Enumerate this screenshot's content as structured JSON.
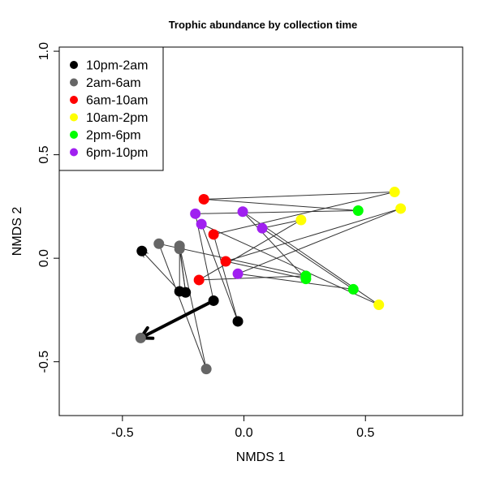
{
  "chart_data": {
    "type": "scatter",
    "title": "Trophic abundance by collection time",
    "xlabel": "NMDS 1",
    "ylabel": "NMDS 2",
    "xlim": [
      -0.76,
      0.9
    ],
    "ylim": [
      -0.76,
      1.02
    ],
    "xticks": [
      -0.5,
      0.0,
      0.5
    ],
    "xtick_labels": [
      "-0.5",
      "0.0",
      "0.5"
    ],
    "yticks": [
      -0.5,
      0.0,
      0.5,
      1.0
    ],
    "ytick_labels": [
      "-0.5",
      "0.0",
      "0.5",
      "1.0"
    ],
    "grid": false,
    "legend_position": "top-left",
    "series": [
      {
        "name": "10pm-2am",
        "color": "#000000",
        "points": [
          {
            "id": 1,
            "x": -0.42,
            "y": 0.035
          },
          {
            "id": 2,
            "x": -0.265,
            "y": -0.16
          },
          {
            "id": 3,
            "x": -0.24,
            "y": -0.165
          },
          {
            "id": 4,
            "x": -0.125,
            "y": -0.205
          },
          {
            "id": 5,
            "x": -0.025,
            "y": -0.305
          }
        ]
      },
      {
        "name": "2am-6am",
        "color": "#666666",
        "points": [
          {
            "id": 6,
            "x": -0.35,
            "y": 0.07
          },
          {
            "id": 7,
            "x": -0.265,
            "y": 0.06
          },
          {
            "id": 8,
            "x": -0.265,
            "y": 0.045
          },
          {
            "id": 9,
            "x": -0.425,
            "y": -0.385
          },
          {
            "id": 10,
            "x": -0.155,
            "y": -0.535
          }
        ]
      },
      {
        "name": "6am-10am",
        "color": "#ff0000",
        "points": [
          {
            "id": 11,
            "x": -0.165,
            "y": 0.285
          },
          {
            "id": 12,
            "x": -0.125,
            "y": 0.115
          },
          {
            "id": 13,
            "x": -0.075,
            "y": -0.015
          },
          {
            "id": 14,
            "x": -0.185,
            "y": -0.105
          }
        ]
      },
      {
        "name": "10am-2pm",
        "color": "#ffff00",
        "points": [
          {
            "id": 15,
            "x": 0.62,
            "y": 0.32
          },
          {
            "id": 16,
            "x": 0.645,
            "y": 0.24
          },
          {
            "id": 17,
            "x": 0.235,
            "y": 0.185
          },
          {
            "id": 18,
            "x": 0.555,
            "y": -0.225
          }
        ]
      },
      {
        "name": "2pm-6pm",
        "color": "#00ff00",
        "points": [
          {
            "id": 19,
            "x": 0.47,
            "y": 0.23
          },
          {
            "id": 20,
            "x": 0.255,
            "y": -0.085
          },
          {
            "id": 21,
            "x": 0.255,
            "y": -0.1
          },
          {
            "id": 22,
            "x": 0.45,
            "y": -0.15
          }
        ]
      },
      {
        "name": "6pm-10pm",
        "color": "#a020f0",
        "points": [
          {
            "id": 23,
            "x": -0.2,
            "y": 0.215
          },
          {
            "id": 24,
            "x": -0.175,
            "y": 0.165
          },
          {
            "id": 25,
            "x": -0.005,
            "y": 0.225
          },
          {
            "id": 26,
            "x": 0.075,
            "y": 0.145
          },
          {
            "id": 27,
            "x": -0.025,
            "y": -0.075
          }
        ]
      }
    ],
    "trajectory": [
      9,
      4,
      23,
      19,
      11,
      15,
      12,
      5,
      24,
      18,
      25,
      21,
      13,
      16,
      27,
      22,
      26,
      17,
      14,
      20,
      6,
      10,
      7,
      3,
      8,
      2,
      1
    ],
    "trajectory_end_style": "open-arrowhead",
    "highlight_arrow": {
      "from": 4,
      "to": 9
    }
  }
}
